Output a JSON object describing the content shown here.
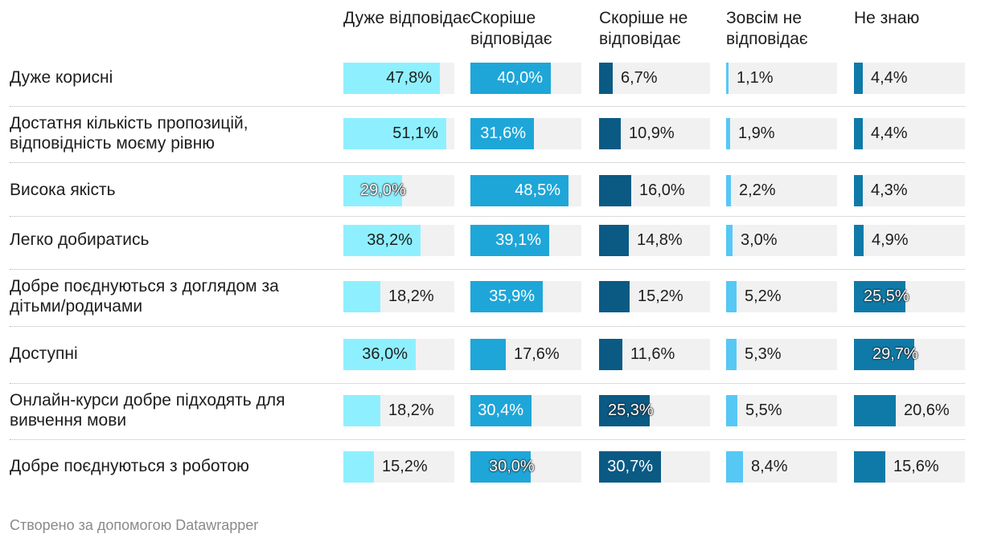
{
  "chart_data": {
    "type": "table",
    "columns": [
      "Дуже відповідає",
      "Скоріше відповідає",
      "Скоріше не відповідає",
      "Зовсім не відповідає",
      "Не знаю"
    ],
    "column_colors": [
      "#8ef0ff",
      "#1ea6d8",
      "#0a5a84",
      "#56c8f5",
      "#0f7aa8"
    ],
    "rows": [
      {
        "label": "Дуже корисні",
        "values": [
          47.8,
          40.0,
          6.7,
          1.1,
          4.4
        ],
        "display": [
          "47,8%",
          "40,0%",
          "6,7%",
          "1,1%",
          "4,4%"
        ]
      },
      {
        "label": "Достатня кількість пропозицій, відповідність моєму рівню",
        "values": [
          51.1,
          31.6,
          10.9,
          1.9,
          4.4
        ],
        "display": [
          "51,1%",
          "31,6%",
          "10,9%",
          "1,9%",
          "4,4%"
        ]
      },
      {
        "label": "Висока якість",
        "values": [
          29.0,
          48.5,
          16.0,
          2.2,
          4.3
        ],
        "display": [
          "29,0%",
          "48,5%",
          "16,0%",
          "2,2%",
          "4,3%"
        ]
      },
      {
        "label": "Легко добиратись",
        "values": [
          38.2,
          39.1,
          14.8,
          3.0,
          4.9
        ],
        "display": [
          "38,2%",
          "39,1%",
          "14,8%",
          "3,0%",
          "4,9%"
        ]
      },
      {
        "label": "Добре поєднуються з доглядом за дітьми/родичами",
        "values": [
          18.2,
          35.9,
          15.2,
          5.2,
          25.5
        ],
        "display": [
          "18,2%",
          "35,9%",
          "15,2%",
          "5,2%",
          "25,5%"
        ]
      },
      {
        "label": "Доступні",
        "values": [
          36.0,
          17.6,
          11.6,
          5.3,
          29.7
        ],
        "display": [
          "36,0%",
          "17,6%",
          "11,6%",
          "5,3%",
          "29,7%"
        ]
      },
      {
        "label": "Онлайн-курси добре підходять для вивчення мови",
        "values": [
          18.2,
          30.4,
          25.3,
          5.5,
          20.6
        ],
        "display": [
          "18,2%",
          "30,4%",
          "25,3%",
          "5,5%",
          "20,6%"
        ]
      },
      {
        "label": "Добре поєднуються з роботою",
        "values": [
          15.2,
          30.0,
          30.7,
          8.4,
          15.6
        ],
        "display": [
          "15,2%",
          "30,0%",
          "30,7%",
          "8,4%",
          "15,6%"
        ]
      }
    ],
    "value_range": [
      0,
      55
    ]
  },
  "footer": "Створено за допомогою Datawrapper"
}
